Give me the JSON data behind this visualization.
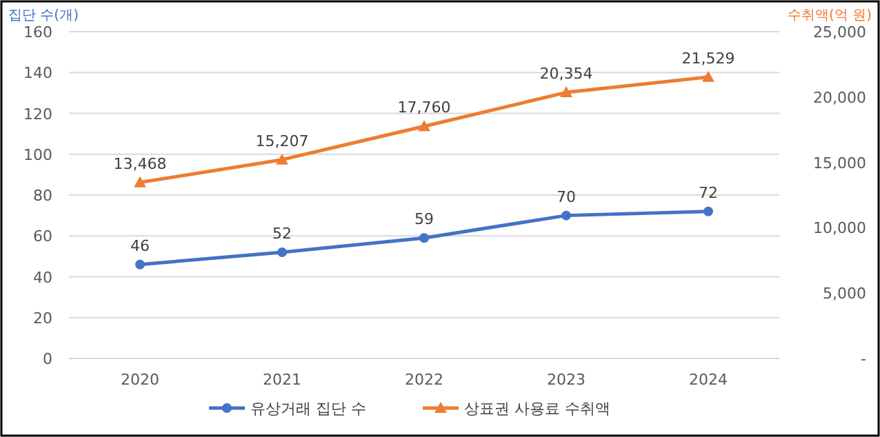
{
  "chart_data": {
    "type": "line",
    "ylabel": "집단 수(개)",
    "y2label": "수취액(억 원)",
    "categories": [
      "2020",
      "2021",
      "2022",
      "2023",
      "2024"
    ],
    "series": [
      {
        "name": "유상거래 집단 수",
        "color": "#4472c4",
        "values": [
          46,
          52,
          59,
          70,
          72
        ],
        "value_labels": [
          "46",
          "52",
          "59",
          "70",
          "72"
        ],
        "marker": "circle"
      },
      {
        "name": "상표권 사용료 수취액",
        "color": "#ed7d31",
        "values": [
          13468,
          15207,
          17760,
          20354,
          21529
        ],
        "value_labels": [
          "13,468",
          "15,207",
          "17,760",
          "20,354",
          "21,529"
        ],
        "marker": "triangle",
        "axis": "y2"
      }
    ],
    "ylim": [
      0,
      160
    ],
    "yticks": [
      0,
      20,
      40,
      60,
      80,
      100,
      120,
      140,
      160
    ],
    "y2lim": [
      0,
      25000
    ],
    "y2ticks": [
      {
        "value": 0,
        "label": "-"
      },
      {
        "value": 5000,
        "label": "5,000"
      },
      {
        "value": 10000,
        "label": "10,000"
      },
      {
        "value": 15000,
        "label": "15,000"
      },
      {
        "value": 20000,
        "label": "20,000"
      },
      {
        "value": 25000,
        "label": "25,000"
      }
    ],
    "grid": "y",
    "legend": "bottom",
    "line_style": "solid"
  }
}
